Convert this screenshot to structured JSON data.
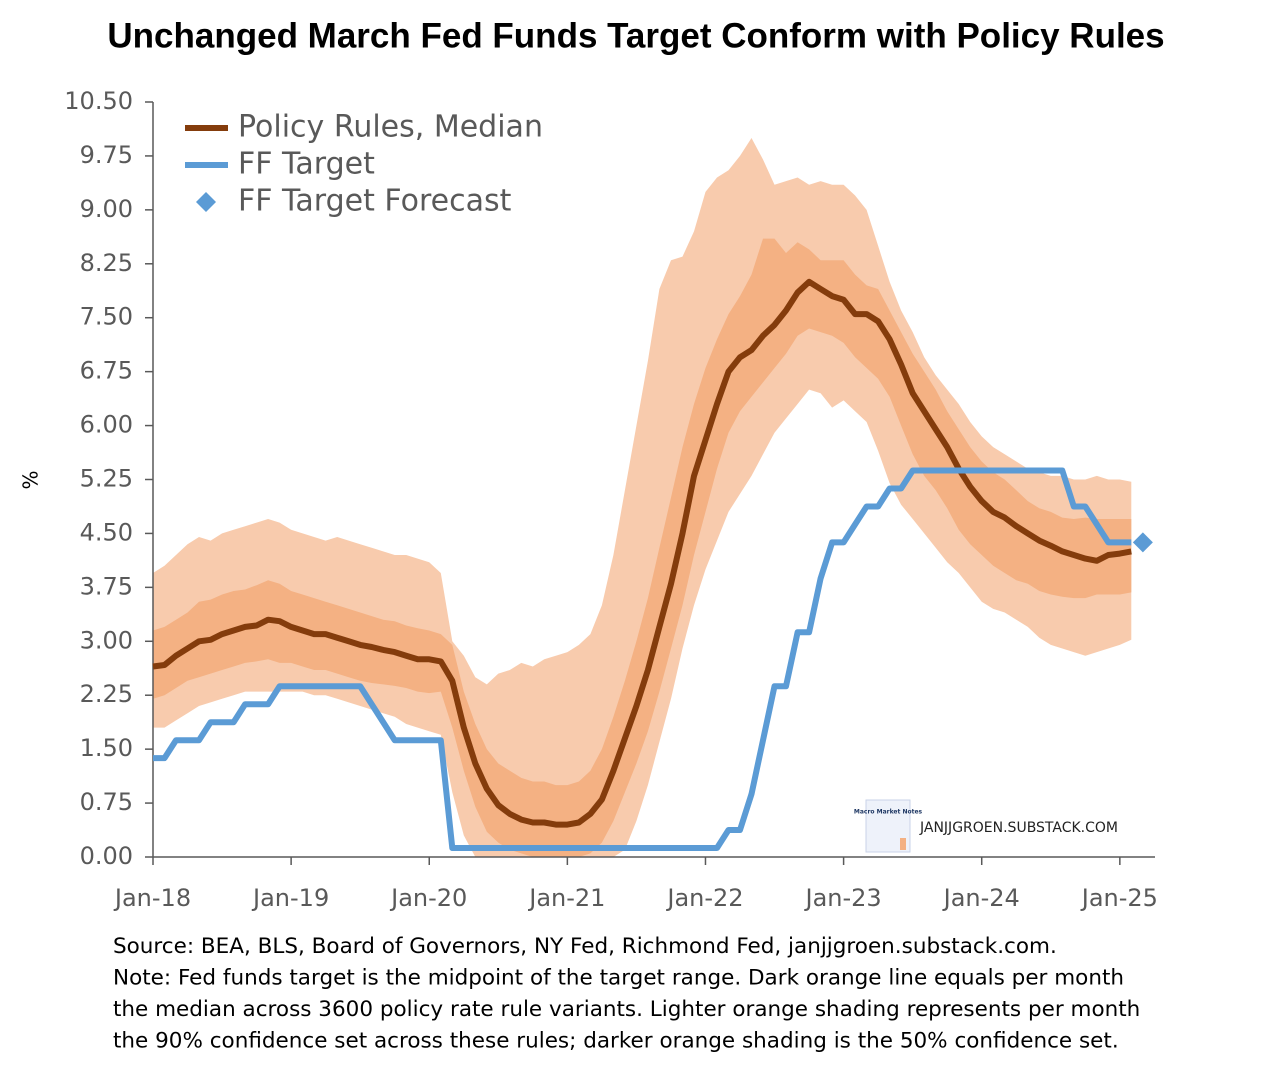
{
  "chart_data": {
    "type": "line",
    "title": "Unchanged March Fed Funds Target Conform with Policy Rules",
    "ylabel": "%",
    "categories": [
      "Jan-18",
      null,
      null,
      null,
      null,
      null,
      null,
      null,
      null,
      null,
      null,
      null,
      "Jan-19",
      null,
      null,
      null,
      null,
      null,
      null,
      null,
      null,
      null,
      null,
      null,
      "Jan-20",
      null,
      null,
      null,
      null,
      null,
      null,
      null,
      null,
      null,
      null,
      null,
      "Jan-21",
      null,
      null,
      null,
      null,
      null,
      null,
      null,
      null,
      null,
      null,
      null,
      "Jan-22",
      null,
      null,
      null,
      null,
      null,
      null,
      null,
      null,
      null,
      null,
      null,
      "Jan-23",
      null,
      null,
      null,
      null,
      null,
      null,
      null,
      null,
      null,
      null,
      null,
      "Jan-24",
      null,
      null,
      null,
      null,
      null,
      null,
      null,
      null,
      null,
      null,
      null,
      "Jan-25",
      null,
      null
    ],
    "ylim": [
      0,
      10.5
    ],
    "yticks": [
      {
        "value": 0,
        "label": "0.00"
      },
      {
        "value": 0.75,
        "label": "0.75"
      },
      {
        "value": 1.5,
        "label": "1.50"
      },
      {
        "value": 2.25,
        "label": "2.25"
      },
      {
        "value": 3,
        "label": "3.00"
      },
      {
        "value": 3.75,
        "label": "3.75"
      },
      {
        "value": 4.5,
        "label": "4.50"
      },
      {
        "value": 5.25,
        "label": "5.25"
      },
      {
        "value": 6,
        "label": "6.00"
      },
      {
        "value": 6.75,
        "label": "6.75"
      },
      {
        "value": 7.5,
        "label": "7.50"
      },
      {
        "value": 8.25,
        "label": "8.25"
      },
      {
        "value": 9,
        "label": "9.00"
      },
      {
        "value": 9.75,
        "label": "9.75"
      },
      {
        "value": 10.5,
        "label": "10.50"
      }
    ],
    "legend": "upper left",
    "bands": [
      {
        "color": "#f8cbad",
        "upper": [
          3.95,
          4.05,
          4.2,
          4.35,
          4.45,
          4.4,
          4.5,
          4.55,
          4.6,
          4.65,
          4.7,
          4.65,
          4.55,
          4.5,
          4.45,
          4.4,
          4.45,
          4.4,
          4.35,
          4.3,
          4.25,
          4.2,
          4.2,
          4.15,
          4.1,
          3.95,
          3.0,
          2.8,
          2.5,
          2.4,
          2.55,
          2.6,
          2.7,
          2.65,
          2.75,
          2.8,
          2.85,
          2.95,
          3.1,
          3.5,
          4.2,
          5.1,
          6.0,
          6.9,
          7.9,
          8.3,
          8.35,
          8.7,
          9.25,
          9.45,
          9.55,
          9.75,
          10.0,
          9.7,
          9.35,
          9.4,
          9.45,
          9.35,
          9.4,
          9.35,
          9.35,
          9.2,
          9.0,
          8.5,
          8.0,
          7.6,
          7.3,
          6.95,
          6.7,
          6.5,
          6.3,
          6.05,
          5.85,
          5.7,
          5.6,
          5.5,
          5.4,
          5.35,
          5.3,
          5.3,
          5.25,
          5.25,
          5.3,
          5.25,
          5.25,
          5.22,
          null
        ],
        "lower": [
          1.8,
          1.8,
          1.9,
          2.0,
          2.1,
          2.15,
          2.2,
          2.25,
          2.3,
          2.3,
          2.3,
          2.3,
          2.3,
          2.3,
          2.25,
          2.25,
          2.2,
          2.15,
          2.1,
          2.05,
          2.0,
          1.95,
          1.85,
          1.8,
          1.75,
          1.7,
          0.9,
          0.3,
          0,
          0,
          0,
          0,
          0,
          0,
          0,
          0,
          0,
          0,
          0,
          0,
          0,
          0.1,
          0.5,
          1.0,
          1.6,
          2.2,
          2.9,
          3.5,
          4.0,
          4.4,
          4.8,
          5.05,
          5.3,
          5.6,
          5.9,
          6.1,
          6.3,
          6.5,
          6.45,
          6.25,
          6.35,
          6.2,
          6.05,
          5.65,
          5.2,
          4.9,
          4.7,
          4.5,
          4.3,
          4.1,
          3.95,
          3.75,
          3.55,
          3.45,
          3.4,
          3.3,
          3.2,
          3.05,
          2.95,
          2.9,
          2.85,
          2.8,
          2.85,
          2.9,
          2.95,
          3.02,
          null
        ]
      },
      {
        "color": "#f4b183",
        "upper": [
          3.15,
          3.2,
          3.3,
          3.4,
          3.55,
          3.58,
          3.65,
          3.7,
          3.72,
          3.78,
          3.85,
          3.8,
          3.7,
          3.65,
          3.6,
          3.55,
          3.5,
          3.45,
          3.4,
          3.35,
          3.3,
          3.28,
          3.22,
          3.18,
          3.15,
          3.1,
          2.95,
          2.3,
          1.85,
          1.5,
          1.3,
          1.2,
          1.1,
          1.05,
          1.05,
          1.0,
          1.0,
          1.05,
          1.2,
          1.5,
          1.95,
          2.45,
          3.0,
          3.6,
          4.3,
          5.0,
          5.7,
          6.3,
          6.8,
          7.2,
          7.55,
          7.8,
          8.1,
          8.6,
          8.6,
          8.4,
          8.55,
          8.45,
          8.3,
          8.3,
          8.3,
          8.1,
          7.95,
          7.9,
          7.6,
          7.3,
          7.0,
          6.75,
          6.5,
          6.2,
          5.95,
          5.7,
          5.5,
          5.35,
          5.25,
          5.1,
          4.95,
          4.85,
          4.8,
          4.72,
          4.7,
          4.72,
          4.7,
          4.7,
          4.7,
          4.7,
          null
        ],
        "lower": [
          2.2,
          2.25,
          2.35,
          2.45,
          2.5,
          2.55,
          2.6,
          2.65,
          2.7,
          2.72,
          2.75,
          2.7,
          2.7,
          2.65,
          2.6,
          2.6,
          2.55,
          2.5,
          2.45,
          2.42,
          2.4,
          2.38,
          2.35,
          2.3,
          2.28,
          2.3,
          1.8,
          1.2,
          0.7,
          0.35,
          0.2,
          0.1,
          0.05,
          0,
          0,
          0,
          0,
          0,
          0.05,
          0.2,
          0.5,
          0.9,
          1.3,
          1.75,
          2.3,
          2.9,
          3.5,
          4.2,
          4.8,
          5.4,
          5.9,
          6.2,
          6.4,
          6.6,
          6.8,
          7.0,
          7.25,
          7.35,
          7.3,
          7.25,
          7.15,
          6.95,
          6.8,
          6.65,
          6.4,
          6.0,
          5.6,
          5.3,
          5.1,
          4.85,
          4.55,
          4.35,
          4.2,
          4.05,
          3.95,
          3.85,
          3.8,
          3.7,
          3.65,
          3.62,
          3.6,
          3.6,
          3.65,
          3.65,
          3.65,
          3.68,
          null
        ]
      }
    ],
    "series": [
      {
        "name": "Policy Rules, Median",
        "color": "#843c0c",
        "style": "line",
        "values": [
          2.65,
          2.67,
          2.8,
          2.9,
          3.0,
          3.02,
          3.1,
          3.15,
          3.2,
          3.22,
          3.3,
          3.28,
          3.2,
          3.15,
          3.1,
          3.1,
          3.05,
          3.0,
          2.95,
          2.92,
          2.88,
          2.85,
          2.8,
          2.75,
          2.75,
          2.72,
          2.45,
          1.8,
          1.3,
          0.95,
          0.72,
          0.6,
          0.52,
          0.48,
          0.48,
          0.45,
          0.45,
          0.48,
          0.6,
          0.8,
          1.2,
          1.65,
          2.1,
          2.6,
          3.2,
          3.8,
          4.5,
          5.3,
          5.8,
          6.3,
          6.75,
          6.95,
          7.05,
          7.25,
          7.4,
          7.6,
          7.85,
          8.0,
          7.9,
          7.8,
          7.75,
          7.55,
          7.55,
          7.45,
          7.2,
          6.85,
          6.45,
          6.2,
          5.95,
          5.7,
          5.4,
          5.15,
          4.95,
          4.8,
          4.72,
          4.6,
          4.5,
          4.4,
          4.33,
          4.25,
          4.2,
          4.15,
          4.12,
          4.2,
          4.22,
          4.25,
          null
        ]
      },
      {
        "name": "FF Target",
        "color": "#5b9bd5",
        "style": "line",
        "values": [
          1.375,
          1.375,
          1.625,
          1.625,
          1.625,
          1.875,
          1.875,
          1.875,
          2.125,
          2.125,
          2.125,
          2.375,
          2.375,
          2.375,
          2.375,
          2.375,
          2.375,
          2.375,
          2.375,
          2.125,
          1.875,
          1.625,
          1.625,
          1.625,
          1.625,
          1.625,
          0.125,
          0.125,
          0.125,
          0.125,
          0.125,
          0.125,
          0.125,
          0.125,
          0.125,
          0.125,
          0.125,
          0.125,
          0.125,
          0.125,
          0.125,
          0.125,
          0.125,
          0.125,
          0.125,
          0.125,
          0.125,
          0.125,
          0.125,
          0.125,
          0.375,
          0.375,
          0.875,
          1.625,
          2.375,
          2.375,
          3.125,
          3.125,
          3.875,
          4.375,
          4.375,
          4.625,
          4.875,
          4.875,
          5.125,
          5.125,
          5.375,
          5.375,
          5.375,
          5.375,
          5.375,
          5.375,
          5.375,
          5.375,
          5.375,
          5.375,
          5.375,
          5.375,
          5.375,
          5.375,
          4.875,
          4.875,
          4.625,
          4.375,
          4.375,
          4.375,
          null
        ]
      },
      {
        "name": "FF Target Forecast",
        "color": "#5b9bd5",
        "style": "marker",
        "values": [
          null,
          null,
          null,
          null,
          null,
          null,
          null,
          null,
          null,
          null,
          null,
          null,
          null,
          null,
          null,
          null,
          null,
          null,
          null,
          null,
          null,
          null,
          null,
          null,
          null,
          null,
          null,
          null,
          null,
          null,
          null,
          null,
          null,
          null,
          null,
          null,
          null,
          null,
          null,
          null,
          null,
          null,
          null,
          null,
          null,
          null,
          null,
          null,
          null,
          null,
          null,
          null,
          null,
          null,
          null,
          null,
          null,
          null,
          null,
          null,
          null,
          null,
          null,
          null,
          null,
          null,
          null,
          null,
          null,
          null,
          null,
          null,
          null,
          null,
          null,
          null,
          null,
          null,
          null,
          null,
          null,
          null,
          null,
          null,
          null,
          null,
          4.375
        ]
      }
    ],
    "watermark": {
      "logo": "Macro Market Notes",
      "text": "JANJJGROEN.SUBSTACK.COM"
    },
    "notes": [
      "Source: BEA, BLS, Board of Governors, NY Fed, Richmond Fed, janjjgroen.substack.com.",
      "Note: Fed funds target is the midpoint of the target range. Dark orange line equals per month",
      "the median across 3600 policy rate rule variants. Lighter orange shading represents per month",
      "the 90% confidence set across these rules; darker orange shading is the 50% confidence set."
    ]
  }
}
